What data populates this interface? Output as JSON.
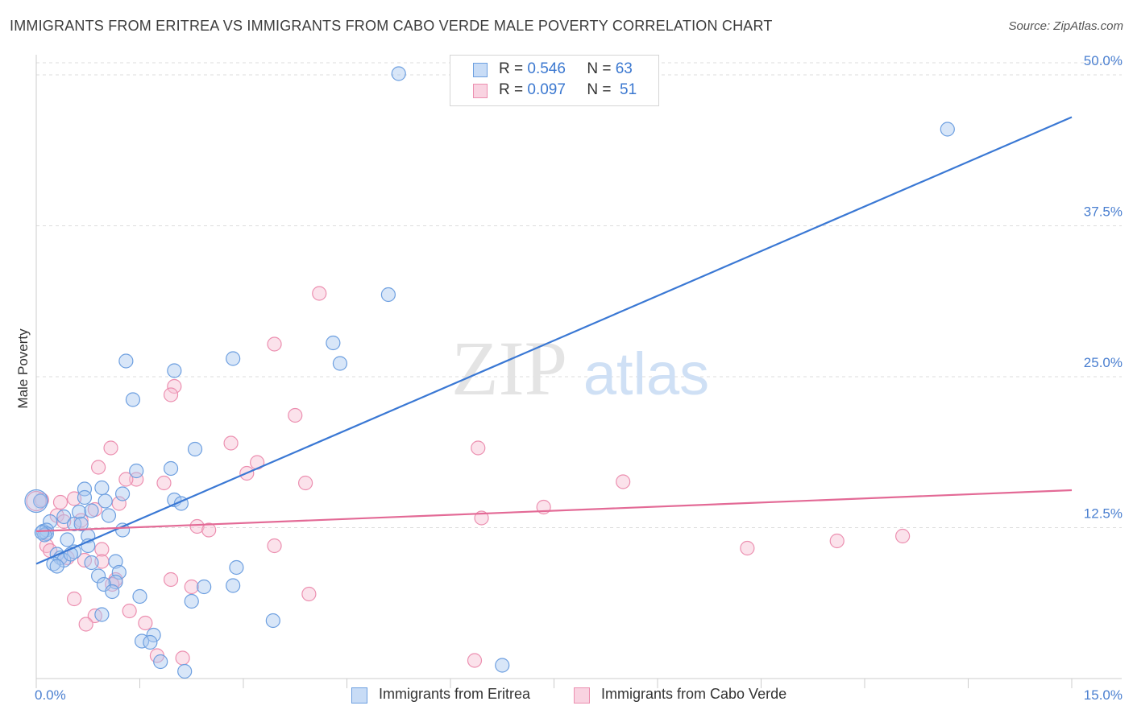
{
  "title": "IMMIGRANTS FROM ERITREA VS IMMIGRANTS FROM CABO VERDE MALE POVERTY CORRELATION CHART",
  "source": "Source: ZipAtlas.com",
  "watermark": {
    "zip": "ZIP",
    "atlas": "atlas"
  },
  "legend": {
    "r_label": "R =",
    "n_label": "N =",
    "series": [
      {
        "r": "0.546",
        "n": "63"
      },
      {
        "r": "0.097",
        "n": "51"
      }
    ]
  },
  "bottom_legend": [
    "Immigrants from Eritrea",
    "Immigrants from Cabo Verde"
  ],
  "colors": {
    "blue_fill": "#a9c8f0",
    "blue_stroke": "#6d9fe0",
    "blue_line": "#3a78d4",
    "pink_fill": "#f6bfd2",
    "pink_stroke": "#ec8fb0",
    "pink_line": "#e36a96",
    "axis_text": "#4a7fd0",
    "grid": "#dddddd"
  },
  "chart_data": {
    "type": "scatter",
    "title": "IMMIGRANTS FROM ERITREA VS IMMIGRANTS FROM CABO VERDE MALE POVERTY CORRELATION CHART",
    "xlabel": "",
    "ylabel": "Male Poverty",
    "xlim": [
      0,
      15
    ],
    "ylim": [
      0,
      51
    ],
    "x_tick_labels": [
      "0.0%",
      "15.0%"
    ],
    "y_ticks": [
      12.5,
      25.0,
      37.5,
      50.0
    ],
    "y_tick_labels": [
      "12.5%",
      "25.0%",
      "37.5%",
      "50.0%"
    ],
    "grid": true,
    "legend": "top-center",
    "series": [
      {
        "name": "Immigrants from Eritrea",
        "r": 0.546,
        "n": 63,
        "trend": {
          "x0": 0,
          "y0": 9.5,
          "x1": 15,
          "y1": 46.5
        },
        "points": [
          [
            5.25,
            50.1
          ],
          [
            13.2,
            45.5
          ],
          [
            5.1,
            31.8
          ],
          [
            4.3,
            27.8
          ],
          [
            4.4,
            26.1
          ],
          [
            2.85,
            26.5
          ],
          [
            1.3,
            26.3
          ],
          [
            2.0,
            25.5
          ],
          [
            1.4,
            23.1
          ],
          [
            2.3,
            19.0
          ],
          [
            1.95,
            17.4
          ],
          [
            1.45,
            17.2
          ],
          [
            0.7,
            15.7
          ],
          [
            0.95,
            15.8
          ],
          [
            1.25,
            15.3
          ],
          [
            0.7,
            15.0
          ],
          [
            1.0,
            14.7
          ],
          [
            2.0,
            14.8
          ],
          [
            2.1,
            14.5
          ],
          [
            0.62,
            13.8
          ],
          [
            0.8,
            13.9
          ],
          [
            0.4,
            13.4
          ],
          [
            1.05,
            13.5
          ],
          [
            0.55,
            12.8
          ],
          [
            0.65,
            12.8
          ],
          [
            0.2,
            13.0
          ],
          [
            0.1,
            12.2
          ],
          [
            0.15,
            12.3
          ],
          [
            1.25,
            12.3
          ],
          [
            0.75,
            11.8
          ],
          [
            0.45,
            11.5
          ],
          [
            0.75,
            11.0
          ],
          [
            0.55,
            10.5
          ],
          [
            0.3,
            10.3
          ],
          [
            0.35,
            10.0
          ],
          [
            0.4,
            9.8
          ],
          [
            0.8,
            9.6
          ],
          [
            1.15,
            9.7
          ],
          [
            0.25,
            9.5
          ],
          [
            0.3,
            9.3
          ],
          [
            2.9,
            9.2
          ],
          [
            1.2,
            8.8
          ],
          [
            0.9,
            8.5
          ],
          [
            1.15,
            8.0
          ],
          [
            0.98,
            7.8
          ],
          [
            2.43,
            7.6
          ],
          [
            2.85,
            7.7
          ],
          [
            1.1,
            7.2
          ],
          [
            1.5,
            6.8
          ],
          [
            2.25,
            6.4
          ],
          [
            0.95,
            5.3
          ],
          [
            3.43,
            4.8
          ],
          [
            1.7,
            3.6
          ],
          [
            1.53,
            3.1
          ],
          [
            1.65,
            3.0
          ],
          [
            1.8,
            1.4
          ],
          [
            2.15,
            0.6
          ],
          [
            6.75,
            1.1
          ],
          [
            0.06,
            14.7
          ],
          [
            0.15,
            12.0
          ],
          [
            0.12,
            11.9
          ],
          [
            0.08,
            12.1
          ],
          [
            0.5,
            10.3
          ]
        ]
      },
      {
        "name": "Immigrants from Cabo Verde",
        "r": 0.097,
        "n": 51,
        "trend": {
          "x0": 0,
          "y0": 12.2,
          "x1": 15,
          "y1": 15.6
        },
        "points": [
          [
            4.1,
            31.9
          ],
          [
            3.45,
            27.7
          ],
          [
            2.0,
            24.2
          ],
          [
            1.95,
            23.5
          ],
          [
            3.75,
            21.8
          ],
          [
            2.82,
            19.5
          ],
          [
            6.4,
            19.1
          ],
          [
            1.08,
            19.1
          ],
          [
            3.2,
            17.9
          ],
          [
            0.9,
            17.5
          ],
          [
            3.05,
            17.0
          ],
          [
            1.45,
            16.5
          ],
          [
            1.3,
            16.5
          ],
          [
            1.85,
            16.2
          ],
          [
            3.9,
            16.2
          ],
          [
            8.5,
            16.3
          ],
          [
            0.55,
            14.9
          ],
          [
            0.35,
            14.6
          ],
          [
            1.2,
            14.5
          ],
          [
            7.35,
            14.2
          ],
          [
            0.85,
            14.0
          ],
          [
            0.3,
            13.5
          ],
          [
            0.65,
            13.1
          ],
          [
            6.45,
            13.3
          ],
          [
            0.4,
            13.0
          ],
          [
            2.33,
            12.6
          ],
          [
            2.5,
            12.3
          ],
          [
            12.55,
            11.8
          ],
          [
            11.6,
            11.4
          ],
          [
            0.15,
            11.0
          ],
          [
            3.45,
            11.0
          ],
          [
            10.3,
            10.8
          ],
          [
            0.2,
            10.6
          ],
          [
            0.95,
            10.7
          ],
          [
            0.45,
            10.0
          ],
          [
            0.7,
            9.8
          ],
          [
            0.95,
            9.7
          ],
          [
            0.08,
            14.8
          ],
          [
            1.15,
            8.2
          ],
          [
            1.95,
            8.2
          ],
          [
            2.25,
            7.6
          ],
          [
            1.1,
            7.8
          ],
          [
            3.95,
            7.0
          ],
          [
            0.55,
            6.6
          ],
          [
            1.35,
            5.6
          ],
          [
            0.85,
            5.2
          ],
          [
            1.58,
            4.6
          ],
          [
            0.72,
            4.5
          ],
          [
            1.75,
            1.9
          ],
          [
            2.12,
            1.7
          ],
          [
            6.35,
            1.5
          ]
        ]
      }
    ]
  }
}
